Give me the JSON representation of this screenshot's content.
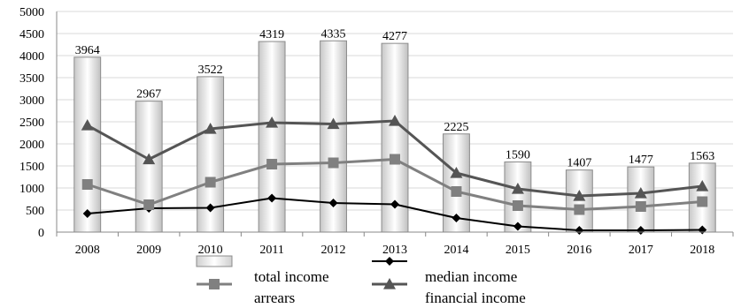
{
  "chart_data": {
    "type": "bar",
    "categories": [
      "2008",
      "2009",
      "2010",
      "2011",
      "2012",
      "2013",
      "2014",
      "2015",
      "2016",
      "2017",
      "2018"
    ],
    "ylim": [
      0,
      5000
    ],
    "yticks": [
      0,
      500,
      1000,
      1500,
      2000,
      2500,
      3000,
      3500,
      4000,
      4500,
      5000
    ],
    "grid": true,
    "bar_series": {
      "name": "total income",
      "values": [
        3964,
        2967,
        3522,
        4319,
        4335,
        4277,
        2225,
        1590,
        1407,
        1477,
        1563
      ],
      "color": "#d9d9d9"
    },
    "line_series": [
      {
        "name": "median income",
        "marker": "diamond",
        "color": "#000000",
        "values": [
          420,
          540,
          550,
          770,
          660,
          630,
          320,
          130,
          40,
          40,
          50
        ]
      },
      {
        "name": "arrears",
        "marker": "square",
        "color": "#808080",
        "values": [
          1080,
          620,
          1130,
          1540,
          1570,
          1650,
          920,
          600,
          510,
          580,
          690
        ]
      },
      {
        "name": "financial income",
        "marker": "triangle",
        "color": "#555555",
        "values": [
          2420,
          1650,
          2340,
          2480,
          2450,
          2520,
          1340,
          980,
          820,
          880,
          1040
        ]
      }
    ],
    "legend_position": "bottom",
    "legend_labels": [
      "total income",
      "median income",
      "arrears",
      "financial income"
    ]
  }
}
